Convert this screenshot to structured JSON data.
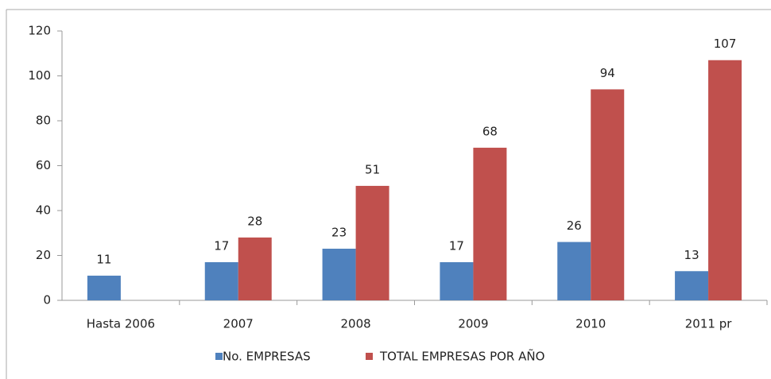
{
  "chart_data": {
    "type": "bar",
    "categories": [
      "Hasta 2006",
      "2007",
      "2008",
      "2009",
      "2010",
      "2011 pr"
    ],
    "series": [
      {
        "name": "No. EMPRESAS",
        "color": "#4f81bd",
        "values": [
          11,
          17,
          23,
          17,
          26,
          13
        ]
      },
      {
        "name": "TOTAL EMPRESAS POR AÑO",
        "color": "#c0504d",
        "values": [
          null,
          28,
          51,
          68,
          94,
          107
        ]
      }
    ],
    "ylim": [
      0,
      120
    ],
    "yticks": [
      0,
      20,
      40,
      60,
      80,
      100,
      120
    ],
    "grid": false,
    "legend": "bottom"
  }
}
